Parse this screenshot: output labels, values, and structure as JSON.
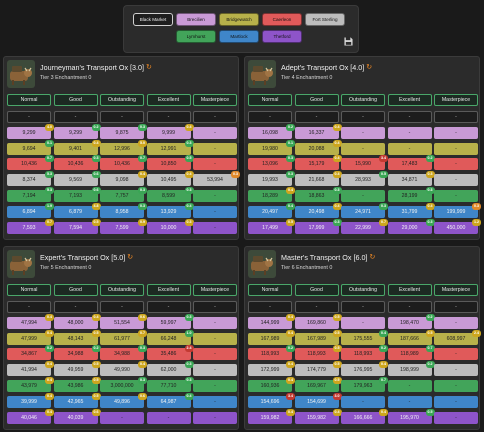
{
  "cities": {
    "buttons": [
      {
        "label": "Black Market",
        "color": "#ececec"
      },
      {
        "label": "Brecilien",
        "color": "#c99ad6"
      },
      {
        "label": "Bridgewatch",
        "color": "#b8b14a"
      },
      {
        "label": "Caerleon",
        "color": "#e05a5a"
      },
      {
        "label": "Fort Sterling",
        "color": "#bdbdbd"
      },
      {
        "label": "Lymhurst",
        "color": "#42a45a"
      },
      {
        "label": "Martlock",
        "color": "#3f86c9"
      },
      {
        "label": "Thetford",
        "color": "#8e54c9"
      }
    ],
    "save_icon": "floppy-disk-icon"
  },
  "colors": {
    "Black Market": "#ececec",
    "Brecilien": "#c99ad6",
    "Bridgewatch": "#b8b14a",
    "Caerleon": "#e05a5a",
    "Fort Sterling": "#bdbdbd",
    "Lymhurst": "#42a45a",
    "Martlock": "#3f86c9",
    "Thetford": "#8e54c9",
    "badge_green": "#3aa655",
    "badge_yellow": "#cda61e",
    "badge_red": "#c33a32",
    "badge_orange": "#e0892a"
  },
  "quality_headers": [
    "Normal",
    "Good",
    "Outstanding",
    "Excellent",
    "Masterpiece"
  ],
  "panels": [
    {
      "title": "Journeyman's Transport Ox [3.0]",
      "subtitle": "Tier 3 Enchantment 0",
      "rows": [
        [
          {
            "t": "-"
          },
          {
            "t": "-"
          },
          {
            "t": "-"
          },
          {
            "t": "-"
          },
          {
            "t": "-"
          }
        ],
        [
          {
            "t": "9,299",
            "b": "4.0",
            "bc": "yellow"
          },
          {
            "t": "9,299",
            "b": "0.2",
            "bc": "green"
          },
          {
            "t": "9,875",
            "b": "0.3",
            "bc": "green"
          },
          {
            "t": "9,999",
            "b": "0.4",
            "bc": "yellow"
          },
          {
            "t": "-"
          }
        ],
        [
          {
            "t": "9,694",
            "b": "0.1",
            "bc": "green"
          },
          {
            "t": "9,401",
            "b": "0.4",
            "bc": "yellow"
          },
          {
            "t": "12,996",
            "b": "5.0",
            "bc": "yellow"
          },
          {
            "t": "12,991",
            "b": "0.3",
            "bc": "green"
          },
          {
            "t": "-"
          }
        ],
        [
          {
            "t": "10,436",
            "b": "0.7",
            "bc": "green"
          },
          {
            "t": "10,436",
            "b": "0.3",
            "bc": "green"
          },
          {
            "t": "10,436",
            "b": "0.7",
            "bc": "green"
          },
          {
            "t": "10,850",
            "b": "0.5",
            "bc": "green"
          },
          {
            "t": "-"
          }
        ],
        [
          {
            "t": "8,374",
            "b": "5.3",
            "bc": "green"
          },
          {
            "t": "9,569",
            "b": "0.6",
            "bc": "green"
          },
          {
            "t": "9,098",
            "b": "0.4",
            "bc": "yellow"
          },
          {
            "t": "10,495",
            "b": "0.4",
            "bc": "yellow"
          },
          {
            "t": "53,994",
            "b": "0.3",
            "bc": "orange"
          }
        ],
        [
          {
            "t": "7,194",
            "b": "5.3",
            "bc": "green"
          },
          {
            "t": "7,193",
            "b": "0.6",
            "bc": "green"
          },
          {
            "t": "7,757",
            "b": "0.3",
            "bc": "green"
          },
          {
            "t": "8,599",
            "b": "0.3",
            "bc": "green"
          },
          {
            "t": "-"
          }
        ],
        [
          {
            "t": "6,894",
            "b": "1.9",
            "bc": "green"
          },
          {
            "t": "6,879",
            "b": "4.8",
            "bc": "yellow"
          },
          {
            "t": "8,958",
            "b": "0.3",
            "bc": "green"
          },
          {
            "t": "13,929",
            "b": "0.4",
            "bc": "green"
          },
          {
            "t": "-"
          }
        ],
        [
          {
            "t": "7,593",
            "b": "0.7",
            "bc": "yellow"
          },
          {
            "t": "7,594",
            "b": "0.5",
            "bc": "yellow"
          },
          {
            "t": "7,599",
            "b": "0.9",
            "bc": "yellow"
          },
          {
            "t": "10,000",
            "b": "0.3",
            "bc": "yellow"
          },
          {
            "t": "-"
          }
        ]
      ]
    },
    {
      "title": "Adept's Transport Ox [4.0]",
      "subtitle": "Tier 4 Enchantment 0",
      "rows": [
        [
          {
            "t": "-"
          },
          {
            "t": "-"
          },
          {
            "t": "-"
          },
          {
            "t": "-"
          },
          {
            "t": "-"
          }
        ],
        [
          {
            "t": "16,098",
            "b": "0.2",
            "bc": "green"
          },
          {
            "t": "16,337",
            "b": "0.4",
            "bc": "yellow"
          },
          {
            "t": "-"
          },
          {
            "t": "-"
          },
          {
            "t": "-"
          }
        ],
        [
          {
            "t": "19,980",
            "b": "0.1",
            "bc": "green"
          },
          {
            "t": "20,088",
            "b": "0.4",
            "bc": "yellow"
          },
          {
            "t": "-"
          },
          {
            "t": "-"
          },
          {
            "t": "-"
          }
        ],
        [
          {
            "t": "13,096",
            "b": "0.3",
            "bc": "green"
          },
          {
            "t": "15,179",
            "b": "0.4",
            "bc": "yellow"
          },
          {
            "t": "15,990",
            "b": "3.4",
            "bc": "red"
          },
          {
            "t": "17,483",
            "b": "0.2",
            "bc": "green"
          },
          {
            "t": "-"
          }
        ],
        [
          {
            "t": "19,993",
            "b": "0.3",
            "bc": "green"
          },
          {
            "t": "21,668",
            "b": "0.4",
            "bc": "yellow"
          },
          {
            "t": "28,993",
            "b": "0.5",
            "bc": "green"
          },
          {
            "t": "34,871",
            "b": "0.3",
            "bc": "yellow"
          },
          {
            "t": "-"
          }
        ],
        [
          {
            "t": "18,289",
            "b": "0.4",
            "bc": "yellow"
          },
          {
            "t": "18,863",
            "b": "0.3",
            "bc": "green"
          },
          {
            "t": "-"
          },
          {
            "t": "28,199",
            "b": "0.3",
            "bc": "green"
          },
          {
            "t": "-"
          }
        ],
        [
          {
            "t": "20,497",
            "b": "0.4",
            "bc": "green"
          },
          {
            "t": "20,498",
            "b": "0.4",
            "bc": "yellow"
          },
          {
            "t": "24,971",
            "b": "0.3",
            "bc": "green"
          },
          {
            "t": "31,799",
            "b": "0.4",
            "bc": "yellow"
          },
          {
            "t": "199,999",
            "b": "0.3",
            "bc": "orange"
          }
        ],
        [
          {
            "t": "17,499",
            "b": "0.5",
            "bc": "yellow"
          },
          {
            "t": "17,999",
            "b": "0.3",
            "bc": "green"
          },
          {
            "t": "22,999",
            "b": "0.7",
            "bc": "yellow"
          },
          {
            "t": "29,000",
            "b": "0.3",
            "bc": "green"
          },
          {
            "t": "450,000",
            "b": "1.2",
            "bc": "yellow"
          }
        ]
      ]
    },
    {
      "title": "Expert's Transport Ox [5.0]",
      "subtitle": "Tier 5 Enchantment 0",
      "rows": [
        [
          {
            "t": "-"
          },
          {
            "t": "-"
          },
          {
            "t": "-"
          },
          {
            "t": "-"
          },
          {
            "t": "-"
          }
        ],
        [
          {
            "t": "47,994",
            "b": "0.4",
            "bc": "yellow"
          },
          {
            "t": "48,000",
            "b": "0.4",
            "bc": "yellow"
          },
          {
            "t": "51,554",
            "b": "0.6",
            "bc": "yellow"
          },
          {
            "t": "59,997",
            "b": "0.3",
            "bc": "green"
          },
          {
            "t": "-"
          }
        ],
        [
          {
            "t": "47,999",
            "b": "0.4",
            "bc": "yellow"
          },
          {
            "t": "48,143",
            "b": "0.5",
            "bc": "yellow"
          },
          {
            "t": "61,977",
            "b": "0.7",
            "bc": "yellow"
          },
          {
            "t": "66,248",
            "b": "1.0",
            "bc": "green"
          },
          {
            "t": "-"
          }
        ],
        [
          {
            "t": "34,867",
            "b": "0.2",
            "bc": "green"
          },
          {
            "t": "34,988",
            "b": "0.2",
            "bc": "green"
          },
          {
            "t": "34,988",
            "b": "0.3",
            "bc": "green"
          },
          {
            "t": "35,486",
            "b": "2.4",
            "bc": "red"
          },
          {
            "t": "-"
          }
        ],
        [
          {
            "t": "41,994",
            "b": "0.4",
            "bc": "yellow"
          },
          {
            "t": "49,959",
            "b": "0.5",
            "bc": "yellow"
          },
          {
            "t": "49,990",
            "b": "0.4",
            "bc": "yellow"
          },
          {
            "t": "62,000",
            "b": "0.3",
            "bc": "green"
          },
          {
            "t": "-"
          }
        ],
        [
          {
            "t": "43,979",
            "b": "0.4",
            "bc": "yellow"
          },
          {
            "t": "43,986",
            "b": "0.5",
            "bc": "yellow"
          },
          {
            "t": "3,000,000",
            "b": "0.3",
            "bc": "green"
          },
          {
            "t": "77,710",
            "b": "0.3",
            "bc": "green"
          },
          {
            "t": "-"
          }
        ],
        [
          {
            "t": "39,999",
            "b": "0.4",
            "bc": "yellow"
          },
          {
            "t": "42,965",
            "b": "0.5",
            "bc": "yellow"
          },
          {
            "t": "49,896",
            "b": "0.6",
            "bc": "yellow"
          },
          {
            "t": "64,987",
            "b": "0.4",
            "bc": "green"
          },
          {
            "t": "-"
          }
        ],
        [
          {
            "t": "40,046",
            "b": "0.4",
            "bc": "yellow"
          },
          {
            "t": "40,039",
            "b": "0.6",
            "bc": "yellow"
          },
          {
            "t": "-"
          },
          {
            "t": "-"
          },
          {
            "t": "-"
          }
        ]
      ]
    },
    {
      "title": "Master's Transport Ox [6.0]",
      "subtitle": "Tier 6 Enchantment 0",
      "rows": [
        [
          {
            "t": "-"
          },
          {
            "t": "-"
          },
          {
            "t": "-"
          },
          {
            "t": "-"
          },
          {
            "t": "-"
          }
        ],
        [
          {
            "t": "144,999",
            "b": "0.4",
            "bc": "yellow"
          },
          {
            "t": "169,860",
            "b": "0.5",
            "bc": "yellow"
          },
          {
            "t": "-"
          },
          {
            "t": "198,470",
            "b": "0.2",
            "bc": "green"
          },
          {
            "t": "-"
          }
        ],
        [
          {
            "t": "167,989",
            "b": "0.4",
            "bc": "yellow"
          },
          {
            "t": "167,989",
            "b": "0.5",
            "bc": "yellow"
          },
          {
            "t": "175,555",
            "b": "0.4",
            "bc": "green"
          },
          {
            "t": "187,666",
            "b": "0.5",
            "bc": "yellow"
          },
          {
            "t": "608,997",
            "b": "2.4",
            "bc": "yellow"
          }
        ],
        [
          {
            "t": "118,993",
            "b": "0.2",
            "bc": "green"
          },
          {
            "t": "118,993",
            "b": "0.5",
            "bc": "yellow"
          },
          {
            "t": "118,993",
            "b": "0.2",
            "bc": "green"
          },
          {
            "t": "118,989",
            "b": "0.7",
            "bc": "green"
          },
          {
            "t": "-"
          }
        ],
        [
          {
            "t": "172,999",
            "b": "0.4",
            "bc": "yellow"
          },
          {
            "t": "174,779",
            "b": "0.5",
            "bc": "yellow"
          },
          {
            "t": "176,995",
            "b": "0.4",
            "bc": "yellow"
          },
          {
            "t": "198,999",
            "b": "0.2",
            "bc": "green"
          },
          {
            "t": "-"
          }
        ],
        [
          {
            "t": "160,936",
            "b": "0.4",
            "bc": "yellow"
          },
          {
            "t": "169,967",
            "b": "0.5",
            "bc": "yellow"
          },
          {
            "t": "179,963",
            "b": "0.7",
            "bc": "green"
          },
          {
            "t": "-"
          },
          {
            "t": "-"
          }
        ],
        [
          {
            "t": "154,696",
            "b": "3.4",
            "bc": "red"
          },
          {
            "t": "154,699",
            "b": "3.0",
            "bc": "red"
          },
          {
            "t": "-"
          },
          {
            "t": "-"
          },
          {
            "t": "-"
          }
        ],
        [
          {
            "t": "159,982",
            "b": "0.4",
            "bc": "yellow"
          },
          {
            "t": "159,982",
            "b": "0.4",
            "bc": "yellow"
          },
          {
            "t": "166,666",
            "b": "0.4",
            "bc": "yellow"
          },
          {
            "t": "195,970",
            "b": "0.5",
            "bc": "green"
          },
          {
            "t": "-"
          }
        ]
      ]
    }
  ]
}
